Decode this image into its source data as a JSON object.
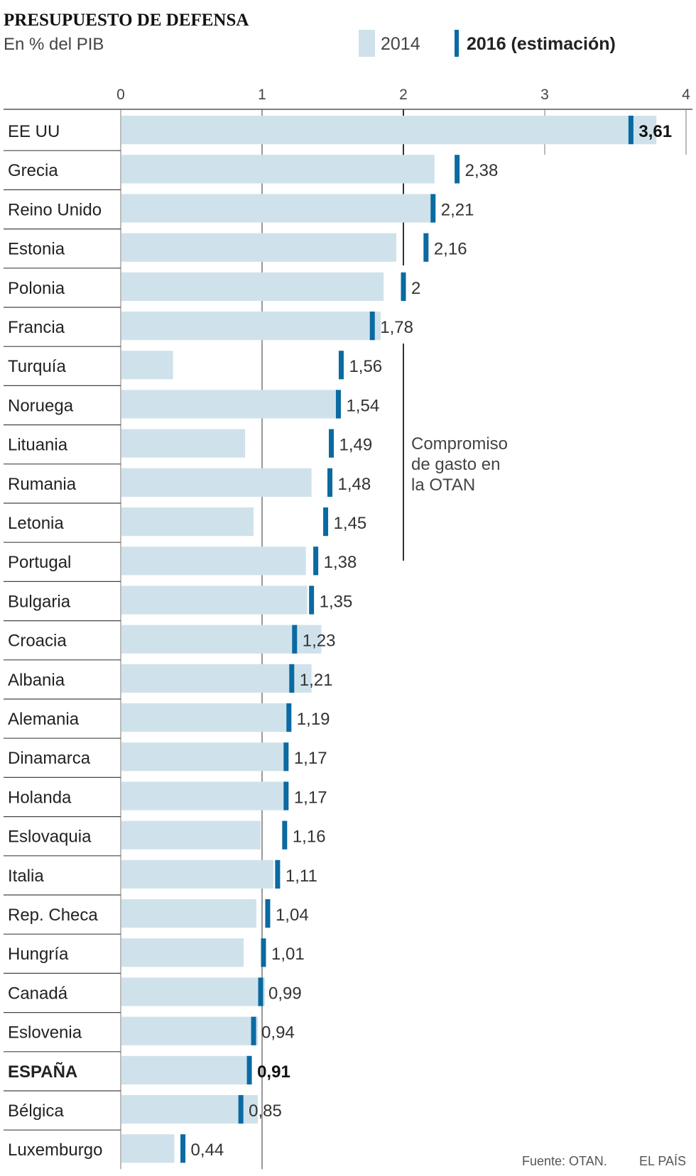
{
  "chart_data": {
    "type": "bar",
    "title": "PRESUPUESTO DE DEFENSA",
    "subtitle": "En % del PIB",
    "legend": {
      "bar_2014": "2014",
      "marker_2016": "2016 (estimación)"
    },
    "xlim": [
      0,
      4
    ],
    "ticks": [
      "0",
      "1",
      "2",
      "3",
      "4"
    ],
    "tick_values": [
      0,
      1,
      2,
      3,
      4
    ],
    "annotation": {
      "value": 2,
      "lines": [
        "Compromiso",
        "de gasto en",
        "la OTAN"
      ]
    },
    "countries": [
      {
        "name": "EE UU",
        "v2014": 3.79,
        "v2016": 3.61,
        "label": "3,61",
        "highlight": false,
        "value_bold": true
      },
      {
        "name": "Grecia",
        "v2014": 2.22,
        "v2016": 2.38,
        "label": "2,38"
      },
      {
        "name": "Reino Unido",
        "v2014": 2.2,
        "v2016": 2.21,
        "label": "2,21"
      },
      {
        "name": "Estonia",
        "v2014": 1.95,
        "v2016": 2.16,
        "label": "2,16"
      },
      {
        "name": "Polonia",
        "v2014": 1.86,
        "v2016": 2.0,
        "label": "2"
      },
      {
        "name": "Francia",
        "v2014": 1.84,
        "v2016": 1.78,
        "label": "1,78"
      },
      {
        "name": "Turquía",
        "v2014": 0.37,
        "v2016": 1.56,
        "label": "1,56"
      },
      {
        "name": "Noruega",
        "v2014": 1.54,
        "v2016": 1.54,
        "label": "1,54"
      },
      {
        "name": "Lituania",
        "v2014": 0.88,
        "v2016": 1.49,
        "label": "1,49"
      },
      {
        "name": "Rumania",
        "v2014": 1.35,
        "v2016": 1.48,
        "label": "1,48"
      },
      {
        "name": "Letonia",
        "v2014": 0.94,
        "v2016": 1.45,
        "label": "1,45"
      },
      {
        "name": "Portugal",
        "v2014": 1.31,
        "v2016": 1.38,
        "label": "1,38"
      },
      {
        "name": "Bulgaria",
        "v2014": 1.32,
        "v2016": 1.35,
        "label": "1,35"
      },
      {
        "name": "Croacia",
        "v2014": 1.42,
        "v2016": 1.23,
        "label": "1,23"
      },
      {
        "name": "Albania",
        "v2014": 1.35,
        "v2016": 1.21,
        "label": "1,21"
      },
      {
        "name": "Alemania",
        "v2014": 1.19,
        "v2016": 1.19,
        "label": "1,19"
      },
      {
        "name": "Dinamarca",
        "v2014": 1.17,
        "v2016": 1.17,
        "label": "1,17"
      },
      {
        "name": "Holanda",
        "v2014": 1.17,
        "v2016": 1.17,
        "label": "1,17"
      },
      {
        "name": "Eslovaquia",
        "v2014": 0.99,
        "v2016": 1.16,
        "label": "1,16"
      },
      {
        "name": "Italia",
        "v2014": 1.08,
        "v2016": 1.11,
        "label": "1,11"
      },
      {
        "name": "Rep. Checa",
        "v2014": 0.96,
        "v2016": 1.04,
        "label": "1,04"
      },
      {
        "name": "Hungría",
        "v2014": 0.87,
        "v2016": 1.01,
        "label": "1,01"
      },
      {
        "name": "Canadá",
        "v2014": 1.02,
        "v2016": 0.99,
        "label": "0,99"
      },
      {
        "name": "Eslovenia",
        "v2014": 0.97,
        "v2016": 0.94,
        "label": "0,94"
      },
      {
        "name": "ESPAÑA",
        "v2014": 0.92,
        "v2016": 0.91,
        "label": "0,91",
        "highlight": true,
        "value_bold": true
      },
      {
        "name": "Bélgica",
        "v2014": 0.97,
        "v2016": 0.85,
        "label": "0,85"
      },
      {
        "name": "Luxemburgo",
        "v2014": 0.38,
        "v2016": 0.44,
        "label": "0,44"
      }
    ],
    "source": "Fuente: OTAN.",
    "credit": "EL PAÍS",
    "colors": {
      "bar_2014": "#cfe2eb",
      "marker_2016": "#0a6aa1",
      "grid": "#555555",
      "separator": "#444444"
    }
  }
}
